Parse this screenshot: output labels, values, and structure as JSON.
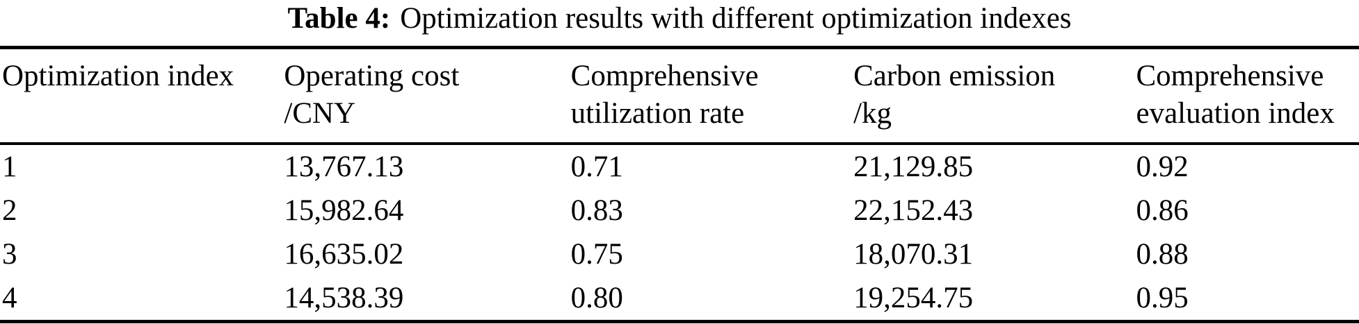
{
  "caption": {
    "label": "Table 4:",
    "text": "Optimization results with different optimization indexes"
  },
  "table": {
    "columns": [
      {
        "line1": "Optimization index",
        "line2": ""
      },
      {
        "line1": "Operating cost",
        "line2": "/CNY"
      },
      {
        "line1": "Comprehensive",
        "line2": "utilization rate"
      },
      {
        "line1": "Carbon emission",
        "line2": "/kg"
      },
      {
        "line1": "Comprehensive",
        "line2": "evaluation index"
      }
    ],
    "rows": [
      [
        "1",
        "13,767.13",
        "0.71",
        "21,129.85",
        "0.92"
      ],
      [
        "2",
        "15,982.64",
        "0.83",
        "22,152.43",
        "0.86"
      ],
      [
        "3",
        "16,635.02",
        "0.75",
        "18,070.31",
        "0.88"
      ],
      [
        "4",
        "14,538.39",
        "0.80",
        "19,254.75",
        "0.95"
      ]
    ],
    "colors": {
      "text": "#000000",
      "background": "#ffffff",
      "rule": "#000000"
    }
  }
}
